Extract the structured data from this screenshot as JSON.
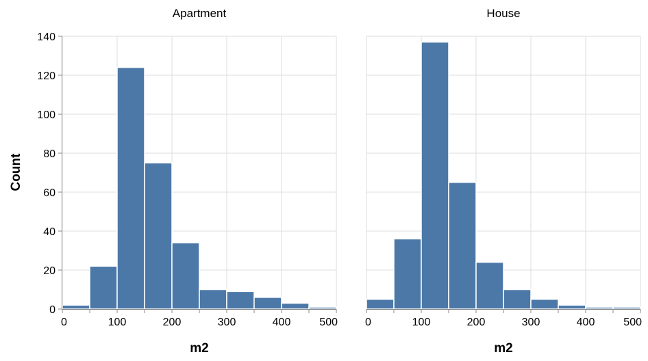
{
  "chart_data": {
    "type": "bar",
    "subtype": "faceted histogram",
    "bar_color": "#4c78a8",
    "grid": true,
    "ylabel": "Count",
    "xlabel": "m2",
    "ylim": [
      0,
      140
    ],
    "xlim": [
      0,
      500
    ],
    "yticks": [
      0,
      20,
      40,
      60,
      80,
      100,
      120,
      140
    ],
    "xticks": [
      0,
      100,
      200,
      300,
      400,
      500
    ],
    "bin_width": 50,
    "bin_starts": [
      0,
      50,
      100,
      150,
      200,
      250,
      300,
      350,
      400,
      450
    ],
    "facets": [
      {
        "title": "Apartment",
        "values": [
          2,
          22,
          124,
          75,
          34,
          10,
          9,
          6,
          3,
          1
        ]
      },
      {
        "title": "House",
        "values": [
          5,
          36,
          137,
          65,
          24,
          10,
          5,
          2,
          1,
          1
        ]
      }
    ]
  }
}
